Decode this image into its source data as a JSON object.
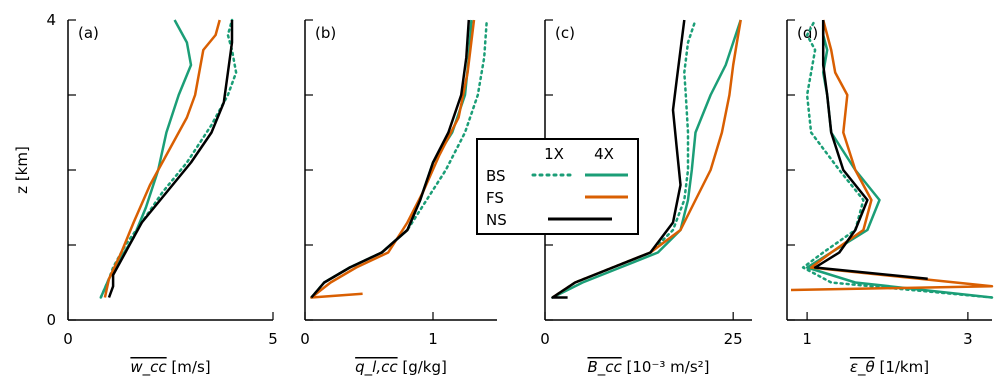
{
  "colors": {
    "BS": "#1b9e77",
    "FS": "#d95f02",
    "NS": "#000000"
  },
  "chart_data": [
    {
      "type": "line",
      "panel_label": "(a)",
      "xlabel": "w_cc",
      "xlabel_unit": "[m/s]",
      "xlim": [
        0,
        5
      ],
      "ylim": [
        0,
        4
      ],
      "xticks": [
        "0",
        "5"
      ],
      "series": [
        {
          "name": "BS 1X",
          "x": [
            0.8,
            1.0,
            1.1,
            1.4,
            1.8,
            2.3,
            2.9,
            3.5,
            3.9,
            4.1,
            4.0,
            3.9,
            4.0
          ],
          "y": [
            0.3,
            0.55,
            0.7,
            1.0,
            1.3,
            1.7,
            2.1,
            2.6,
            3.0,
            3.3,
            3.6,
            3.8,
            4.0
          ]
        },
        {
          "name": "BS 4X",
          "x": [
            0.8,
            1.0,
            1.2,
            1.6,
            1.9,
            2.2,
            2.4,
            2.7,
            3.0,
            2.9,
            2.7,
            2.6
          ],
          "y": [
            0.3,
            0.55,
            0.75,
            1.1,
            1.5,
            2.0,
            2.5,
            3.0,
            3.4,
            3.7,
            3.9,
            4.0
          ]
        },
        {
          "name": "FS 4X",
          "x": [
            0.9,
            1.0,
            1.3,
            1.6,
            2.0,
            2.5,
            2.9,
            3.1,
            3.2,
            3.3,
            3.6,
            3.7
          ],
          "y": [
            0.3,
            0.55,
            0.9,
            1.3,
            1.8,
            2.3,
            2.7,
            3.0,
            3.3,
            3.6,
            3.8,
            4.0
          ]
        },
        {
          "name": "NS 4X",
          "x": [
            1.0,
            1.1,
            1.1,
            1.4,
            1.8,
            2.4,
            3.0,
            3.5,
            3.8,
            3.9,
            4.0,
            4.0
          ],
          "y": [
            0.3,
            0.45,
            0.6,
            0.9,
            1.3,
            1.7,
            2.1,
            2.5,
            2.9,
            3.3,
            3.7,
            4.0
          ]
        }
      ]
    },
    {
      "type": "line",
      "panel_label": "(b)",
      "xlabel": "q_l,cc",
      "xlabel_unit": "[g/kg]",
      "xlim": [
        0,
        1.5
      ],
      "ylim": [
        0,
        4
      ],
      "xticks": [
        "0",
        "1"
      ],
      "xtick_values": [
        0,
        1
      ],
      "series": [
        {
          "name": "BS 1X",
          "x": [
            0.05,
            0.15,
            0.35,
            0.6,
            0.8,
            0.95,
            1.1,
            1.25,
            1.35,
            1.4,
            1.42
          ],
          "y": [
            0.3,
            0.5,
            0.7,
            0.9,
            1.2,
            1.6,
            2.0,
            2.5,
            3.0,
            3.5,
            4.0
          ]
        },
        {
          "name": "BS 4X",
          "x": [
            0.05,
            0.15,
            0.35,
            0.6,
            0.8,
            0.9,
            1.0,
            1.15,
            1.25,
            1.28,
            1.3
          ],
          "y": [
            0.3,
            0.5,
            0.7,
            0.9,
            1.2,
            1.6,
            2.1,
            2.5,
            3.0,
            3.5,
            4.0
          ]
        },
        {
          "name": "FS 4X",
          "x": [
            0.45,
            0.05,
            0.2,
            0.4,
            0.65,
            0.8,
            0.92,
            1.05,
            1.2,
            1.27,
            1.32
          ],
          "y": [
            0.35,
            0.3,
            0.5,
            0.7,
            0.9,
            1.3,
            1.7,
            2.2,
            2.7,
            3.3,
            4.0
          ]
        },
        {
          "name": "NS 4X",
          "x": [
            0.05,
            0.15,
            0.35,
            0.6,
            0.8,
            0.9,
            1.0,
            1.12,
            1.22,
            1.26,
            1.28
          ],
          "y": [
            0.3,
            0.5,
            0.7,
            0.9,
            1.2,
            1.6,
            2.1,
            2.5,
            3.0,
            3.5,
            4.0
          ]
        }
      ]
    },
    {
      "type": "line",
      "panel_label": "(c)",
      "xlabel": "B_cc",
      "xlabel_unit": "[10⁻³ m/s²]",
      "xlim": [
        0,
        27.5
      ],
      "ylim": [
        0,
        4
      ],
      "xticks": [
        "0",
        "25"
      ],
      "xtick_values": [
        0,
        25
      ],
      "series": [
        {
          "name": "BS 1X",
          "x": [
            1,
            4,
            9,
            14,
            17,
            18.5,
            19,
            19,
            18.7,
            18.5,
            19,
            20
          ],
          "y": [
            0.3,
            0.5,
            0.7,
            0.9,
            1.2,
            1.6,
            2.0,
            2.5,
            3.0,
            3.3,
            3.7,
            4.0
          ]
        },
        {
          "name": "BS 4X",
          "x": [
            1,
            5,
            10,
            15,
            18,
            19,
            19.5,
            20,
            22,
            24,
            25,
            26
          ],
          "y": [
            0.3,
            0.5,
            0.7,
            0.9,
            1.2,
            1.6,
            2.0,
            2.5,
            3.0,
            3.4,
            3.7,
            4.0
          ]
        },
        {
          "name": "FS 4X",
          "x": [
            1,
            4,
            9,
            14,
            18,
            20,
            22,
            23.5,
            24.5,
            25,
            25.5,
            26
          ],
          "y": [
            0.3,
            0.5,
            0.7,
            0.9,
            1.2,
            1.6,
            2.0,
            2.5,
            3.0,
            3.4,
            3.7,
            4.0
          ]
        },
        {
          "name": "NS 4X",
          "x": [
            3,
            1,
            4,
            9,
            14,
            17,
            18,
            17.5,
            17,
            17.5,
            18,
            18.5
          ],
          "y": [
            0.3,
            0.3,
            0.5,
            0.7,
            0.9,
            1.3,
            1.8,
            2.3,
            2.8,
            3.2,
            3.6,
            4.0
          ]
        }
      ]
    },
    {
      "type": "line",
      "panel_label": "(d)",
      "xlabel": "ε_θ",
      "xlabel_unit": "[1/km]",
      "xlim": [
        0.75,
        3.3
      ],
      "ylim": [
        0,
        4
      ],
      "xticks": [
        "1",
        "3"
      ],
      "xtick_values": [
        1,
        3
      ],
      "series": [
        {
          "name": "BS 1X",
          "x": [
            3.3,
            1.3,
            0.95,
            1.2,
            1.6,
            1.7,
            1.4,
            1.05,
            1.0,
            1.05,
            1.1,
            1.0,
            1.1
          ],
          "y": [
            0.3,
            0.5,
            0.7,
            0.9,
            1.2,
            1.6,
            2.0,
            2.5,
            3.0,
            3.3,
            3.6,
            3.8,
            4.0
          ]
        },
        {
          "name": "BS 4X",
          "x": [
            3.3,
            1.6,
            1.0,
            1.3,
            1.75,
            1.9,
            1.6,
            1.3,
            1.25,
            1.2,
            1.25,
            1.2,
            1.2
          ],
          "y": [
            0.3,
            0.5,
            0.7,
            0.9,
            1.2,
            1.6,
            2.0,
            2.5,
            3.0,
            3.3,
            3.6,
            3.8,
            4.0
          ]
        },
        {
          "name": "FS 4X",
          "x": [
            0.8,
            3.3,
            1.05,
            1.3,
            1.7,
            1.8,
            1.6,
            1.45,
            1.5,
            1.35,
            1.3,
            1.25,
            1.2
          ],
          "y": [
            0.4,
            0.45,
            0.7,
            0.9,
            1.2,
            1.6,
            2.0,
            2.5,
            3.0,
            3.3,
            3.6,
            3.8,
            4.0
          ]
        },
        {
          "name": "NS 4X",
          "x": [
            2.5,
            1.1,
            1.4,
            1.6,
            1.75,
            1.45,
            1.3,
            1.25,
            1.2,
            1.2,
            1.2
          ],
          "y": [
            0.55,
            0.7,
            0.9,
            1.2,
            1.6,
            2.0,
            2.5,
            3.0,
            3.4,
            3.7,
            4.0
          ]
        }
      ]
    }
  ],
  "yaxis": {
    "label": "z [km]",
    "ticks": [
      "0",
      "4"
    ],
    "tick_values": [
      0,
      4
    ]
  },
  "legend": {
    "col1": "1X",
    "col2": "4X",
    "rows": [
      "BS",
      "FS",
      "NS"
    ]
  }
}
